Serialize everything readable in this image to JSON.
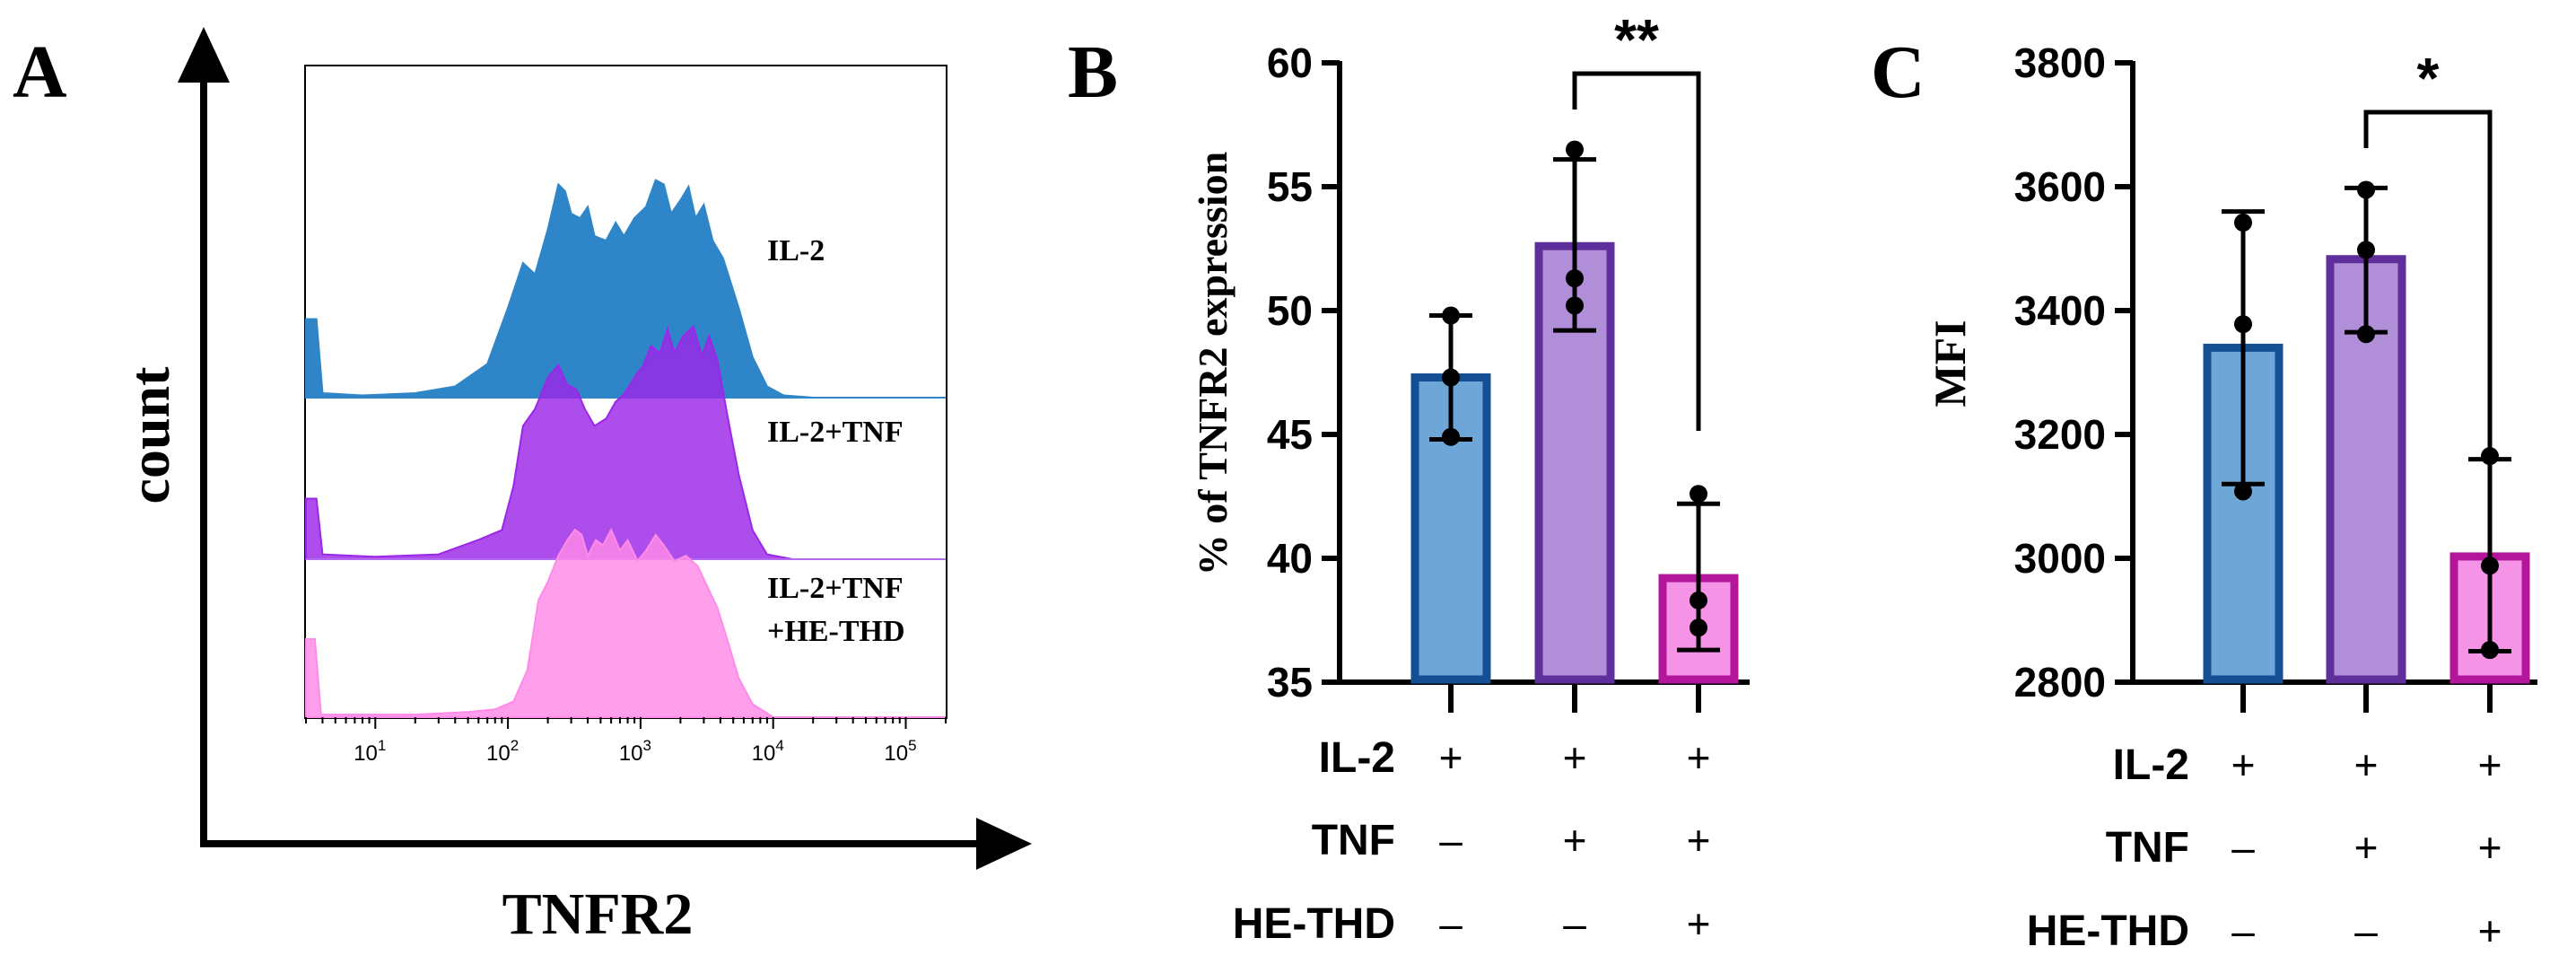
{
  "chart_data": [
    {
      "type": "area",
      "panel_label": "A",
      "xlabel": "TNFR2",
      "ylabel": "count",
      "x_scale": "log",
      "xlim": [
        3,
        200000
      ],
      "x_tick_labels": [
        {
          "v": 10,
          "base": "10",
          "exp": "1"
        },
        {
          "v": 100,
          "base": "10",
          "exp": "2"
        },
        {
          "v": 1000,
          "base": "10",
          "exp": "3"
        },
        {
          "v": 10000,
          "base": "10",
          "exp": "4"
        },
        {
          "v": 100000,
          "base": "10",
          "exp": "5"
        }
      ],
      "series": [
        {
          "name": "IL-2",
          "label_lines": [
            "IL-2"
          ],
          "color": "#2e86c8",
          "points": [
            [
              3,
              0.35
            ],
            [
              3.6,
              0.35
            ],
            [
              4,
              0.02
            ],
            [
              8,
              0.01
            ],
            [
              20,
              0.02
            ],
            [
              40,
              0.05
            ],
            [
              70,
              0.15
            ],
            [
              100,
              0.4
            ],
            [
              130,
              0.6
            ],
            [
              160,
              0.55
            ],
            [
              200,
              0.75
            ],
            [
              240,
              0.95
            ],
            [
              270,
              0.92
            ],
            [
              300,
              0.82
            ],
            [
              350,
              0.8
            ],
            [
              400,
              0.85
            ],
            [
              450,
              0.72
            ],
            [
              550,
              0.7
            ],
            [
              650,
              0.78
            ],
            [
              750,
              0.72
            ],
            [
              900,
              0.8
            ],
            [
              1100,
              0.85
            ],
            [
              1300,
              0.97
            ],
            [
              1500,
              0.95
            ],
            [
              1700,
              0.82
            ],
            [
              2000,
              0.88
            ],
            [
              2300,
              0.94
            ],
            [
              2600,
              0.8
            ],
            [
              3000,
              0.86
            ],
            [
              3500,
              0.7
            ],
            [
              4200,
              0.62
            ],
            [
              5500,
              0.4
            ],
            [
              7000,
              0.18
            ],
            [
              9000,
              0.05
            ],
            [
              12000,
              0.01
            ],
            [
              20000,
              0.0
            ],
            [
              200000,
              0.0
            ]
          ]
        },
        {
          "name": "IL-2+TNF",
          "label_lines": [
            "IL-2+TNF"
          ],
          "color": "#9b27e8",
          "points": [
            [
              3,
              0.25
            ],
            [
              3.6,
              0.25
            ],
            [
              4,
              0.02
            ],
            [
              10,
              0.01
            ],
            [
              30,
              0.02
            ],
            [
              60,
              0.08
            ],
            [
              90,
              0.12
            ],
            [
              110,
              0.3
            ],
            [
              130,
              0.55
            ],
            [
              160,
              0.62
            ],
            [
              200,
              0.75
            ],
            [
              240,
              0.8
            ],
            [
              280,
              0.72
            ],
            [
              330,
              0.7
            ],
            [
              380,
              0.62
            ],
            [
              450,
              0.55
            ],
            [
              550,
              0.58
            ],
            [
              650,
              0.65
            ],
            [
              750,
              0.68
            ],
            [
              900,
              0.75
            ],
            [
              1050,
              0.8
            ],
            [
              1200,
              0.88
            ],
            [
              1400,
              0.85
            ],
            [
              1600,
              0.95
            ],
            [
              1800,
              0.85
            ],
            [
              2100,
              0.92
            ],
            [
              2500,
              0.96
            ],
            [
              2900,
              0.84
            ],
            [
              3300,
              0.92
            ],
            [
              3800,
              0.82
            ],
            [
              4500,
              0.6
            ],
            [
              5500,
              0.35
            ],
            [
              7000,
              0.12
            ],
            [
              9000,
              0.02
            ],
            [
              14000,
              0.0
            ],
            [
              200000,
              0.0
            ]
          ]
        },
        {
          "name": "IL-2+TNF +HE-THD",
          "label_lines": [
            "IL-2+TNF",
            "+HE-THD"
          ],
          "color": "#ff8ae8",
          "points": [
            [
              3,
              0.3
            ],
            [
              3.5,
              0.3
            ],
            [
              3.9,
              0.01
            ],
            [
              20,
              0.01
            ],
            [
              50,
              0.02
            ],
            [
              80,
              0.03
            ],
            [
              110,
              0.06
            ],
            [
              140,
              0.18
            ],
            [
              170,
              0.45
            ],
            [
              200,
              0.52
            ],
            [
              240,
              0.62
            ],
            [
              280,
              0.68
            ],
            [
              320,
              0.72
            ],
            [
              360,
              0.7
            ],
            [
              400,
              0.62
            ],
            [
              460,
              0.68
            ],
            [
              520,
              0.66
            ],
            [
              600,
              0.72
            ],
            [
              700,
              0.64
            ],
            [
              800,
              0.68
            ],
            [
              950,
              0.6
            ],
            [
              1100,
              0.64
            ],
            [
              1300,
              0.7
            ],
            [
              1500,
              0.66
            ],
            [
              1800,
              0.6
            ],
            [
              2200,
              0.62
            ],
            [
              2700,
              0.58
            ],
            [
              3200,
              0.5
            ],
            [
              3800,
              0.42
            ],
            [
              4500,
              0.3
            ],
            [
              5500,
              0.15
            ],
            [
              7000,
              0.05
            ],
            [
              10000,
              0.0
            ],
            [
              200000,
              0.0
            ]
          ]
        }
      ]
    },
    {
      "type": "bar",
      "panel_label": "B",
      "ylabel": "% of TNFR2 expression",
      "ylim": [
        35,
        60
      ],
      "yticks": [
        35,
        40,
        45,
        50,
        55,
        60
      ],
      "categories": [
        "IL-2",
        "IL-2+TNF",
        "IL-2+TNF+HE-THD"
      ],
      "values": [
        47.3,
        52.6,
        39.2
      ],
      "error": [
        [
          44.8,
          49.8
        ],
        [
          49.2,
          56.1
        ],
        [
          36.3,
          42.2
        ]
      ],
      "points": [
        [
          44.9,
          47.3,
          49.8
        ],
        [
          50.2,
          51.3,
          56.5
        ],
        [
          37.2,
          38.3,
          42.6
        ]
      ],
      "colors": [
        "#6ea6d8",
        "#b08ed8",
        "#f593e6"
      ],
      "edge_colors": [
        "#144f93",
        "#5e2f9b",
        "#b3169a"
      ],
      "significance": {
        "from": 1,
        "to": 2,
        "label": "**"
      },
      "conditions": [
        {
          "label": "IL-2",
          "marks": [
            "+",
            "+",
            "+"
          ]
        },
        {
          "label": "TNF",
          "marks": [
            "–",
            "+",
            "+"
          ]
        },
        {
          "label": "HE-THD",
          "marks": [
            "–",
            "–",
            "+"
          ]
        }
      ]
    },
    {
      "type": "bar",
      "panel_label": "C",
      "ylabel": "MFI",
      "ylim": [
        2800,
        3800
      ],
      "yticks": [
        2800,
        3000,
        3200,
        3400,
        3600,
        3800
      ],
      "categories": [
        "IL-2",
        "IL-2+TNF",
        "IL-2+TNF+HE-THD"
      ],
      "values": [
        3340,
        3483,
        3003
      ],
      "error": [
        [
          3120,
          3560
        ],
        [
          3365,
          3598
        ],
        [
          2850,
          3160
        ]
      ],
      "points": [
        [
          3108,
          3378,
          3542
        ],
        [
          3362,
          3498,
          3595
        ],
        [
          2852,
          2988,
          3165
        ]
      ],
      "colors": [
        "#6ea6d8",
        "#b08ed8",
        "#f593e6"
      ],
      "edge_colors": [
        "#144f93",
        "#5e2f9b",
        "#b3169a"
      ],
      "significance": {
        "from": 1,
        "to": 2,
        "label": "*"
      },
      "conditions": [
        {
          "label": "IL-2",
          "marks": [
            "+",
            "+",
            "+"
          ]
        },
        {
          "label": "TNF",
          "marks": [
            "–",
            "+",
            "+"
          ]
        },
        {
          "label": "HE-THD",
          "marks": [
            "–",
            "–",
            "+"
          ]
        }
      ]
    }
  ]
}
